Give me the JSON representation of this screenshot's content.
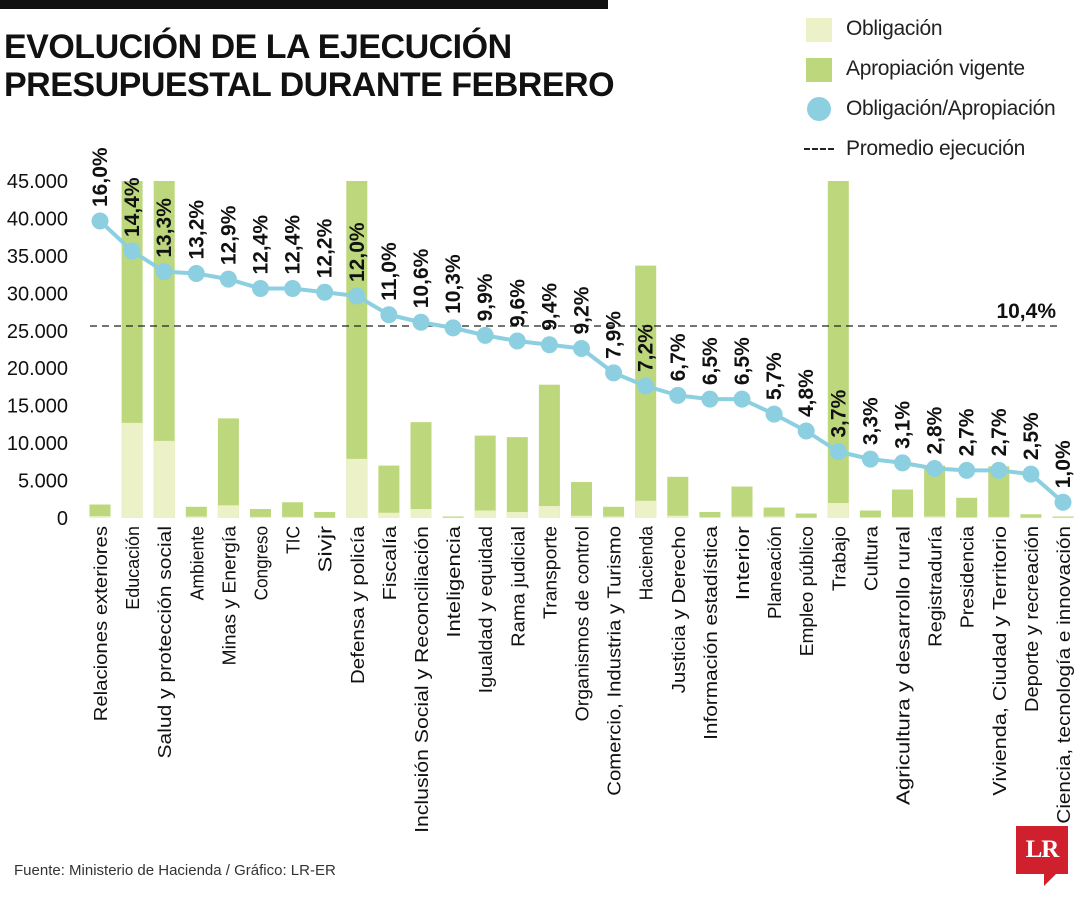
{
  "header": {
    "title_line1": "EVOLUCIÓN DE LA EJECUCIÓN",
    "title_line2": "PRESUPUESTAL DURANTE FEBRERO"
  },
  "legend": {
    "obligacion": "Obligación",
    "apropiacion": "Apropiación vigente",
    "ratio": "Obligación/Apropiación",
    "promedio": "Promedio ejecución"
  },
  "colors": {
    "obligacion": "#ecf1c8",
    "apropiacion": "#bcd77c",
    "ratio": "#8ccfe1",
    "text": "#111111",
    "promedio": "#222222",
    "brand": "#d0202e"
  },
  "footer": {
    "source": "Fuente: Ministerio de Hacienda / Gráfico: LR-ER",
    "logo": "LR"
  },
  "chart_data": {
    "type": "bar",
    "categories": [
      "Relaciones exteriores",
      "Educación",
      "Salud y protección social",
      "Ambiente",
      "Minas y Energía",
      "Congreso",
      "TIC",
      "Sivjr",
      "Defensa y policía",
      "Fiscalía",
      "Inclusión Social y Reconciliación",
      "Inteligencia",
      "Igualdad y equidad",
      "Rama judicial",
      "Transporte",
      "Organismos de control",
      "Comercio, Industria y Turismo",
      "Hacienda",
      "Justicia y Derecho",
      "Información estadística",
      "Interior",
      "Planeación",
      "Empleo público",
      "Trabajo",
      "Cultura",
      "Agricultura y desarrollo rural",
      "Registraduría",
      "Presidencia",
      "Vivienda, Ciudad y Territorio",
      "Deporte y recreación",
      "Ciencia, tecnología e innovación"
    ],
    "series": [
      {
        "name": "Obligación",
        "values": [
          250,
          12700,
          10300,
          200,
          1700,
          150,
          150,
          50,
          7900,
          700,
          1200,
          50,
          1000,
          800,
          1600,
          300,
          200,
          2300,
          300,
          100,
          200,
          200,
          50,
          2000,
          100,
          150,
          200,
          100,
          150,
          50,
          50
        ]
      },
      {
        "name": "Apropiación vigente",
        "values": [
          1800,
          45000,
          45000,
          1500,
          13300,
          1200,
          2100,
          800,
          45000,
          7000,
          12800,
          200,
          11000,
          10800,
          17800,
          4800,
          1500,
          33700,
          5500,
          800,
          4200,
          1400,
          600,
          45000,
          1000,
          3800,
          7000,
          2700,
          6900,
          500,
          200
        ]
      },
      {
        "name": "Obligación/Apropiación",
        "labels": [
          "16,0%",
          "14,4%",
          "13,3%",
          "13,2%",
          "12,9%",
          "12,4%",
          "12,4%",
          "12,2%",
          "12,0%",
          "11,0%",
          "10,6%",
          "10,3%",
          "9,9%",
          "9,6%",
          "9,4%",
          "9,2%",
          "7,9%",
          "7,2%",
          "6,7%",
          "6,5%",
          "6,5%",
          "5,7%",
          "4,8%",
          "3,7%",
          "3,3%",
          "3,1%",
          "2,8%",
          "2,7%",
          "2,7%",
          "2,5%",
          "1,0%"
        ],
        "values": [
          16.0,
          14.4,
          13.3,
          13.2,
          12.9,
          12.4,
          12.4,
          12.2,
          12.0,
          11.0,
          10.6,
          10.3,
          9.9,
          9.6,
          9.4,
          9.2,
          7.9,
          7.2,
          6.7,
          6.5,
          6.5,
          5.7,
          4.8,
          3.7,
          3.3,
          3.1,
          2.8,
          2.7,
          2.7,
          2.5,
          1.0
        ]
      }
    ],
    "promedio": {
      "value": 10.4,
      "label": "10,4%"
    },
    "y_ticks": [
      "0",
      "5.000",
      "10.000",
      "15.000",
      "20.000",
      "25.000",
      "30.000",
      "35.000",
      "40.000",
      "45.000"
    ],
    "ylim": [
      0,
      45000
    ],
    "legend_position": "top-right",
    "grid": false
  }
}
